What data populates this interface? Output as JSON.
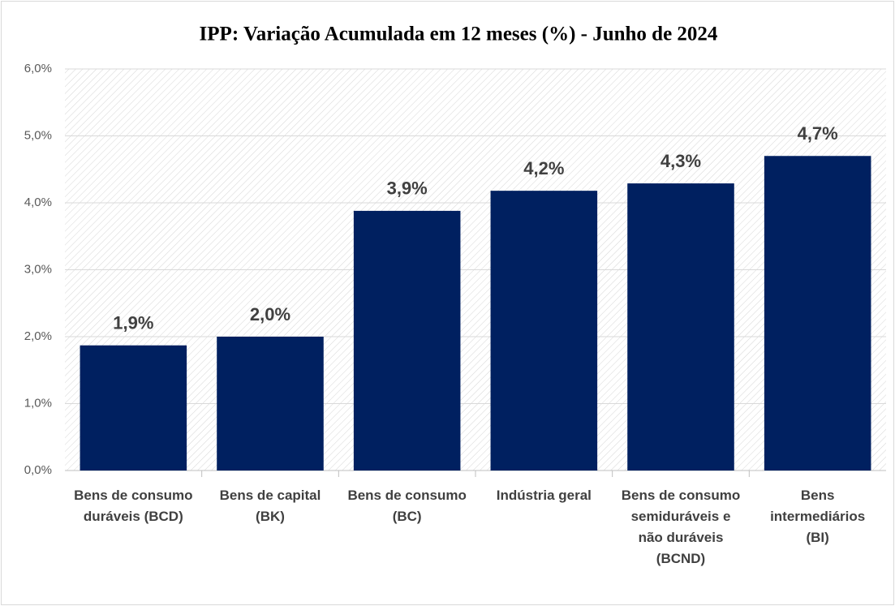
{
  "chart_data": {
    "type": "bar",
    "title": "IPP: Variação Acumulada em 12 meses (%) - Junho de 2024",
    "categories": [
      "Bens de consumo duráveis (BCD)",
      "Bens de capital (BK)",
      "Bens de consumo (BC)",
      "Indústria geral",
      "Bens de consumo semiduráveis e não duráveis (BCND)",
      "Bens intermediários (BI)"
    ],
    "values": [
      1.87,
      2.0,
      3.88,
      4.18,
      4.29,
      4.7
    ],
    "value_labels": [
      "1,9%",
      "2,0%",
      "3,9%",
      "4,2%",
      "4,3%",
      "4,7%"
    ],
    "color": "#002060",
    "ylim": [
      0,
      6
    ],
    "yticks": [
      {
        "value": 0,
        "label": "0,0%"
      },
      {
        "value": 1,
        "label": "1,0%"
      },
      {
        "value": 2,
        "label": "2,0%"
      },
      {
        "value": 3,
        "label": "3,0%"
      },
      {
        "value": 4,
        "label": "4,0%"
      },
      {
        "value": 5,
        "label": "5,0%"
      },
      {
        "value": 6,
        "label": "6,0%"
      }
    ],
    "grid": true
  }
}
